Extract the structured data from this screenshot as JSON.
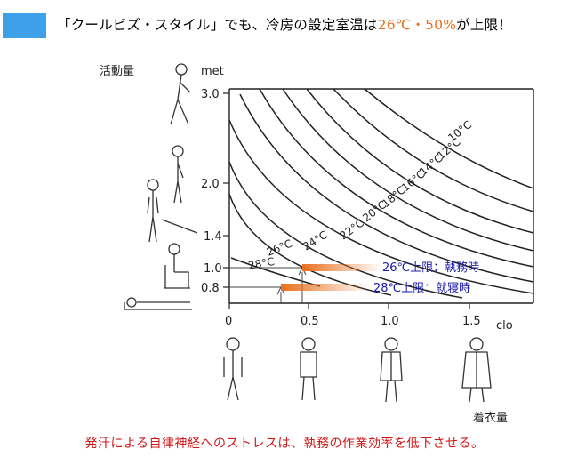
{
  "headline": {
    "part1": "「クールビズ・スタイル」でも、冷房の設定室温は",
    "highlight": "26℃・50%",
    "part2": "が上限！"
  },
  "footer_text": "発汗による自律神経へのストレスは、執務の作業効率を低下させる。",
  "chart": {
    "y_label_jp": "活動量",
    "y_unit": "met",
    "x_unit": "clo",
    "x_label_jp": "着衣量",
    "y_ticks": [
      "3.0",
      "2.0",
      "1.4",
      "1.0",
      "0.8"
    ],
    "x_ticks": [
      "0",
      "0.5",
      "1.0",
      "1.5"
    ],
    "curve_labels": [
      "10°C",
      "12°C",
      "14°C",
      "16°C",
      "18°C",
      "20°C",
      "22°C",
      "24°C",
      "26°C",
      "28°C"
    ],
    "annotations": {
      "work": "26℃上限：執務時",
      "sleep": "28℃上限：就寝時"
    },
    "accent_color": "#e8701e",
    "annotation_color": "#1a1aa8"
  },
  "chart_data": {
    "type": "line",
    "x_axis": {
      "unit": "clo",
      "ticks": [
        0,
        0.5,
        1.0,
        1.5
      ]
    },
    "y_axis": {
      "unit": "met",
      "ticks": [
        0.8,
        1.0,
        1.4,
        2.0,
        3.0
      ]
    },
    "series": [
      {
        "name": "10°C"
      },
      {
        "name": "12°C"
      },
      {
        "name": "14°C"
      },
      {
        "name": "16°C"
      },
      {
        "name": "18°C"
      },
      {
        "name": "20°C"
      },
      {
        "name": "22°C"
      },
      {
        "name": "24°C"
      },
      {
        "name": "26°C"
      },
      {
        "name": "28°C"
      }
    ],
    "highlights": [
      {
        "label": "26℃上限：執務時",
        "met": 1.0,
        "clo_from": 0.45
      },
      {
        "label": "28℃上限：就寝時",
        "met": 0.8,
        "clo_from": 0.32
      }
    ]
  }
}
